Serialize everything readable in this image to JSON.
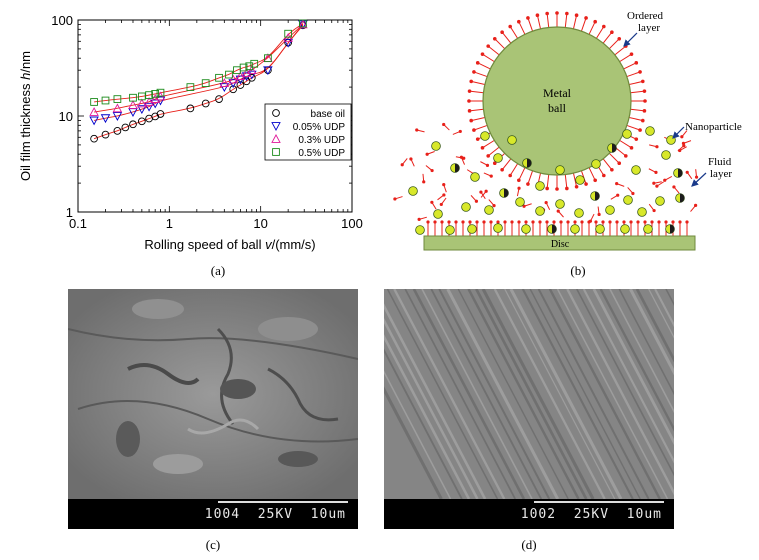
{
  "panel_a": {
    "caption": "(a)",
    "ylabel_text": "Oil film thickness ",
    "ylabel_var": "h",
    "ylabel_unit": "/nm",
    "xlabel_text": "Rolling speed of ball ",
    "xlabel_var": "v",
    "xlabel_unit": "/(mm/s)",
    "x_ticks": [
      "0.1",
      "1",
      "10",
      "100"
    ],
    "y_ticks": [
      "1",
      "10",
      "100"
    ],
    "legend": [
      "base oil",
      "0.05% UDP",
      "0.3% UDP",
      "0.5% UDP"
    ],
    "colors": {
      "base": "#000000",
      "udp005": "#0000cc",
      "udp03": "#e0189a",
      "udp05": "#1a8a1a",
      "fit": "#e8201a"
    }
  },
  "chart_data": {
    "type": "scatter",
    "xscale": "log",
    "yscale": "log",
    "xlim": [
      0.1,
      100
    ],
    "ylim": [
      1,
      100
    ],
    "grid": false,
    "legend_position": "right",
    "series": [
      {
        "name": "base oil",
        "marker": "circle",
        "x": [
          0.15,
          0.2,
          0.27,
          0.33,
          0.4,
          0.5,
          0.6,
          0.7,
          0.8,
          1.7,
          2.5,
          3.5,
          5,
          6,
          7,
          8,
          12,
          20,
          29
        ],
        "y": [
          5.8,
          6.4,
          7.0,
          7.6,
          8.2,
          8.8,
          9.4,
          9.9,
          10.5,
          12,
          13.5,
          15,
          19,
          21,
          23,
          25,
          30,
          58,
          88
        ]
      },
      {
        "name": "0.05% UDP",
        "marker": "triangle-down",
        "x": [
          0.15,
          0.2,
          0.27,
          0.4,
          0.5,
          0.6,
          0.7,
          0.8,
          4,
          5,
          6,
          7,
          8,
          12,
          20,
          29
        ],
        "y": [
          9,
          9.5,
          10,
          11,
          11.8,
          12.5,
          13.5,
          14.5,
          20,
          22,
          24,
          26,
          27,
          30,
          58,
          90
        ]
      },
      {
        "name": "0.3% UDP",
        "marker": "triangle-up",
        "x": [
          0.15,
          0.27,
          0.4,
          0.5,
          0.6,
          0.7,
          0.8,
          4,
          5,
          6,
          7,
          8,
          12,
          20,
          29
        ],
        "y": [
          11,
          12,
          13,
          13.5,
          14,
          15,
          16,
          22,
          24,
          26,
          28,
          30,
          40,
          65,
          90
        ]
      },
      {
        "name": "0.5% UDP",
        "marker": "square",
        "x": [
          0.15,
          0.2,
          0.27,
          0.4,
          0.5,
          0.6,
          0.7,
          0.8,
          1.7,
          2.5,
          3.5,
          4.5,
          5.5,
          6.5,
          7.5,
          8.5,
          12,
          20,
          29
        ],
        "y": [
          14,
          14.5,
          15,
          15.5,
          16,
          16.5,
          17,
          17.5,
          20,
          22,
          25,
          27,
          30,
          32,
          33,
          35,
          40,
          72,
          92
        ]
      }
    ]
  },
  "panel_b": {
    "caption": "(b)",
    "ball_label_1": "Metal",
    "ball_label_2": "ball",
    "ordered_1": "Ordered",
    "ordered_2": "layer",
    "nanoparticle": "Nanoparticle",
    "fluid_1": "Fluid",
    "fluid_2": "layer",
    "disc": "Disc",
    "colors": {
      "ball": "#a9c476",
      "ball_edge": "#6f8a3c",
      "disc": "#a9c476",
      "molecule": "#e8201a",
      "particle": "#d8e82a",
      "particle_edge": "#3a5a1a",
      "arrow": "#1a3a8a"
    }
  },
  "panel_c": {
    "caption": "(c)",
    "scale_text": "1004  25KV  10um"
  },
  "panel_d": {
    "caption": "(d)",
    "scale_text": "1002  25KV  10um"
  }
}
